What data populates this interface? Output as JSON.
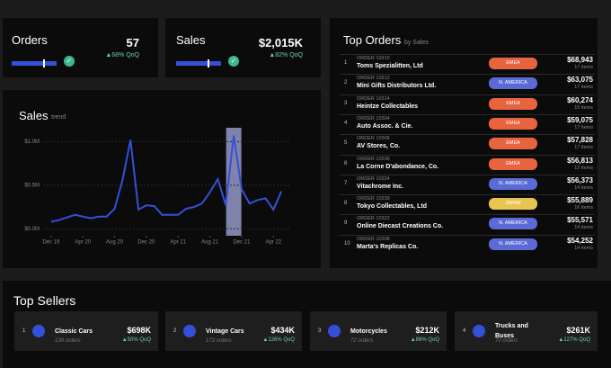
{
  "kpis": [
    {
      "title": "Orders",
      "value": "57",
      "change": "▲68% QoQ"
    },
    {
      "title": "Sales",
      "value": "$2,015K",
      "change": "▲82% QoQ"
    }
  ],
  "sales_chart": {
    "type": "line",
    "title": "Sales",
    "subtitle": "trend",
    "x": [
      "2019-12",
      "2020-01",
      "2020-02",
      "2020-03",
      "2020-04",
      "2020-05",
      "2020-06",
      "2020-07",
      "2020-08",
      "2020-09",
      "2020-10",
      "2020-11",
      "2020-12",
      "2021-01",
      "2021-02",
      "2021-03",
      "2021-04",
      "2021-05",
      "2021-06",
      "2021-07",
      "2021-08",
      "2021-09",
      "2021-10",
      "2021-11",
      "2021-12",
      "2022-01",
      "2022-02",
      "2022-03",
      "2022-04",
      "2022-05"
    ],
    "series": [
      {
        "name": "Sales",
        "color": "#3550d8",
        "values": [
          80000,
          100000,
          130000,
          160000,
          140000,
          120000,
          140000,
          140000,
          230000,
          560000,
          1020000,
          220000,
          270000,
          260000,
          160000,
          160000,
          160000,
          230000,
          250000,
          290000,
          420000,
          570000,
          270000,
          1070000,
          450000,
          290000,
          330000,
          350000,
          220000,
          430000
        ]
      }
    ],
    "highlight": "2021-11",
    "xlim": [
      "2019-11",
      "2022-06"
    ],
    "xticks": [
      {
        "value": "2019-12",
        "label": "Dec 19"
      },
      {
        "value": "2020-04",
        "label": "Apr 20"
      },
      {
        "value": "2020-08",
        "label": "Aug 20"
      },
      {
        "value": "2020-12",
        "label": "Dec 20"
      },
      {
        "value": "2021-04",
        "label": "Apr 21"
      },
      {
        "value": "2021-08",
        "label": "Aug 21"
      },
      {
        "value": "2021-12",
        "label": "Dec 21"
      },
      {
        "value": "2022-04",
        "label": "Apr 22"
      }
    ],
    "ylim": [
      -80000,
      1180000
    ],
    "yticks": [
      {
        "value": 0,
        "label": "$0.0M"
      },
      {
        "value": 500000,
        "label": "$0.5M"
      },
      {
        "value": 1000000,
        "label": "$1.0M"
      }
    ],
    "grid": true
  },
  "top_orders": {
    "title": "Top Orders",
    "subtitle": "by Sales",
    "rows": [
      {
        "rank": "1",
        "order": "ORDER 10310",
        "customer": "Toms Spezialitten, Ltd",
        "region": "EMEA",
        "sales": "$68,943",
        "items": "17 items"
      },
      {
        "rank": "2",
        "order": "ORDER 10312",
        "customer": "Mini Gifts Distributors Ltd.",
        "region": "N. AMERICA",
        "sales": "$63,075",
        "items": "17 items"
      },
      {
        "rank": "3",
        "order": "ORDER 10314",
        "customer": "Heintze Collectables",
        "region": "EMEA",
        "sales": "$60,274",
        "items": "15 items"
      },
      {
        "rank": "4",
        "order": "ORDER 10304",
        "customer": "Auto Assoc. & Cie.",
        "region": "EMEA",
        "sales": "$59,075",
        "items": "17 items"
      },
      {
        "rank": "5",
        "order": "ORDER 10306",
        "customer": "AV Stores, Co.",
        "region": "EMEA",
        "sales": "$57,828",
        "items": "17 items"
      },
      {
        "rank": "6",
        "order": "ORDER 10336",
        "customer": "La Corne D'abondance, Co.",
        "region": "EMEA",
        "sales": "$56,813",
        "items": "12 items"
      },
      {
        "rank": "7",
        "order": "ORDER 10324",
        "customer": "Vitachrome Inc.",
        "region": "N. AMERICA",
        "sales": "$56,373",
        "items": "14 items"
      },
      {
        "rank": "8",
        "order": "ORDER 10339",
        "customer": "Tokyo Collectables, Ltd",
        "region": "JAPAN",
        "sales": "$55,889",
        "items": "16 items"
      },
      {
        "rank": "9",
        "order": "ORDER 10322",
        "customer": "Online Diecast Creations Co.",
        "region": "N. AMERICA",
        "sales": "$55,571",
        "items": "14 items"
      },
      {
        "rank": "10",
        "order": "ORDER 10308",
        "customer": "Marta's Replicas Co.",
        "region": "N. AMERICA",
        "sales": "$54,252",
        "items": "14 items"
      }
    ]
  },
  "top_sellers": {
    "title": "Top Sellers",
    "items": [
      {
        "rank": "1",
        "name": "Classic Cars",
        "orders": "139 orders",
        "sales": "$698K",
        "change": "▲50% QoQ"
      },
      {
        "rank": "2",
        "name": "Vintage Cars",
        "orders": "173 orders",
        "sales": "$434K",
        "change": "▲126% QoQ"
      },
      {
        "rank": "3",
        "name": "Motorcycles",
        "orders": "72 orders",
        "sales": "$212K",
        "change": "▲86% QoQ"
      },
      {
        "rank": "4",
        "name": "Trucks and Buses",
        "orders": "70 orders",
        "sales": "$261K",
        "change": "▲127% QoQ"
      }
    ]
  }
}
